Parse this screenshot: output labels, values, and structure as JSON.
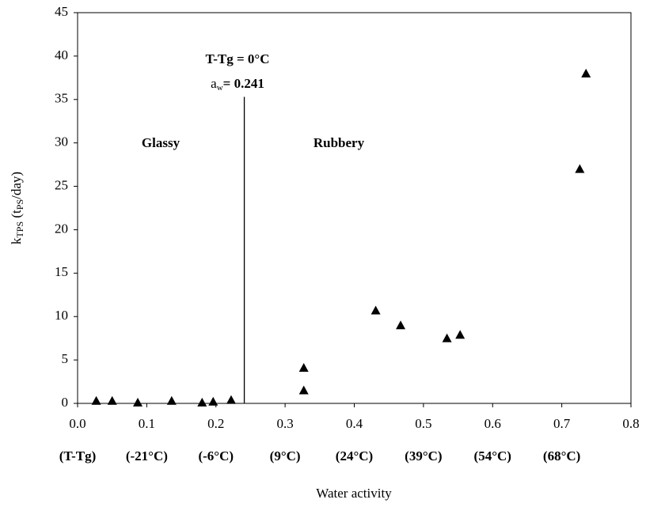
{
  "chart_data": {
    "type": "scatter",
    "xlabel": "Water activity",
    "ylabel_parts": [
      "k",
      "TPS",
      " (t",
      "PS",
      "/day)"
    ],
    "x": [
      0.027,
      0.05,
      0.087,
      0.136,
      0.18,
      0.196,
      0.222,
      0.327,
      0.327,
      0.431,
      0.467,
      0.534,
      0.553,
      0.726,
      0.735
    ],
    "values": [
      0.3,
      0.3,
      0.1,
      0.3,
      0.1,
      0.2,
      0.4,
      1.5,
      4.1,
      10.7,
      9.0,
      7.5,
      7.9,
      27.0,
      38.0
    ],
    "color": "#000000",
    "xlim": [
      0,
      0.8
    ],
    "ylim": [
      0,
      45
    ],
    "xticks": [
      {
        "value": 0,
        "label": "0.0"
      },
      0.1,
      0.2,
      0.3,
      0.4,
      0.5,
      0.6,
      0.7,
      0.8
    ],
    "yticks": [
      0,
      5,
      10,
      15,
      20,
      25,
      30,
      35,
      40,
      45
    ],
    "temperature_labels": [
      "(T-Tg)",
      "(-21°C)",
      "(-6°C)",
      "(9°C)",
      "(24°C)",
      "(39°C)",
      "(54°C)",
      "(68°C)"
    ],
    "vline": {
      "x": 0.241,
      "top": 35.3
    },
    "annotations": {
      "tg_line": "T-Tg = 0°C",
      "aw_parts": [
        "a",
        "w",
        "= 0.241"
      ],
      "glassy": "Glassy",
      "rubbery": "Rubbery"
    }
  }
}
